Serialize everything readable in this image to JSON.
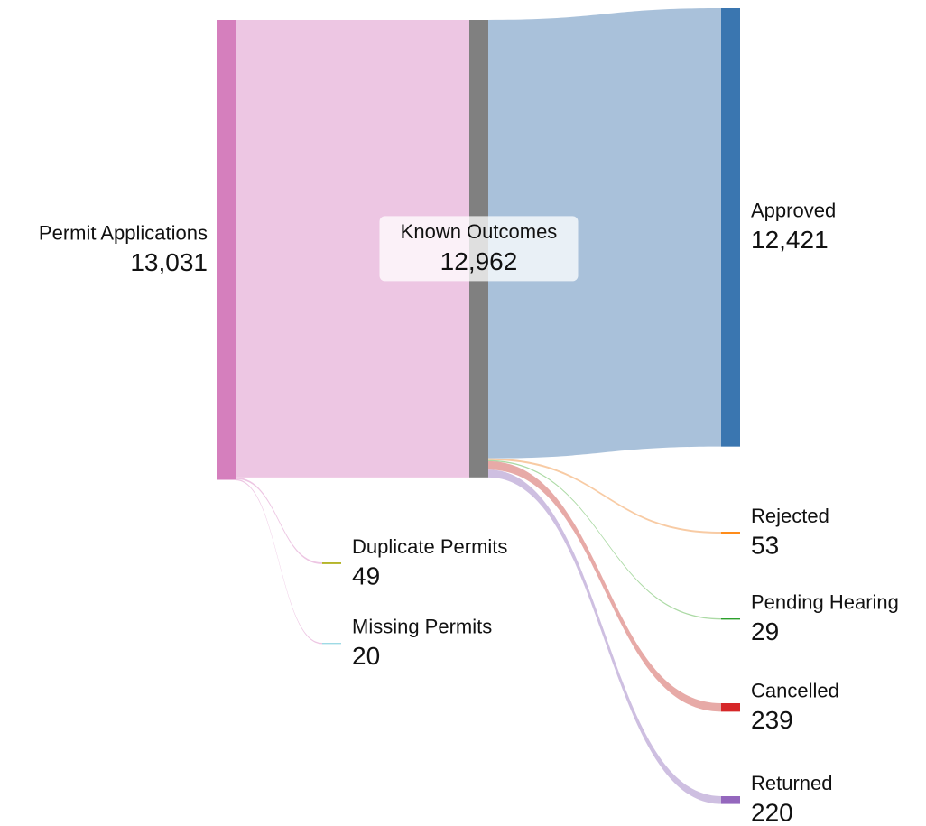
{
  "chart_data": {
    "type": "sankey",
    "nodes": [
      {
        "name": "Permit Applications",
        "value": 13031,
        "value_label": "13,031",
        "color": "#d57fbd"
      },
      {
        "name": "Known Outcomes",
        "value": 12962,
        "value_label": "12,962",
        "color": "#808080"
      },
      {
        "name": "Duplicate Permits",
        "value": 49,
        "value_label": "49",
        "color": "#b5b52a"
      },
      {
        "name": "Missing Permits",
        "value": 20,
        "value_label": "20",
        "color": "#9edae5"
      },
      {
        "name": "Approved",
        "value": 12421,
        "value_label": "12,421",
        "color": "#3a76b0"
      },
      {
        "name": "Rejected",
        "value": 53,
        "value_label": "53",
        "color": "#ff8c1a"
      },
      {
        "name": "Pending Hearing",
        "value": 29,
        "value_label": "29",
        "color": "#2ca02c"
      },
      {
        "name": "Cancelled",
        "value": 239,
        "value_label": "239",
        "color": "#d62728"
      },
      {
        "name": "Returned",
        "value": 220,
        "value_label": "220",
        "color": "#9467bd"
      }
    ],
    "links": [
      {
        "source": 0,
        "target": 1,
        "color": "#ecc3e1"
      },
      {
        "source": 0,
        "target": 2,
        "color": "#ecc3e1"
      },
      {
        "source": 0,
        "target": 3,
        "color": "#ecc3e1"
      },
      {
        "source": 1,
        "target": 4,
        "color": "#a4bed8"
      },
      {
        "source": 1,
        "target": 5,
        "color": "#f8c89f"
      },
      {
        "source": 1,
        "target": 6,
        "color": "#a8d8a0"
      },
      {
        "source": 1,
        "target": 7,
        "color": "#e6a5a2"
      },
      {
        "source": 1,
        "target": 8,
        "color": "#cbbcdf"
      }
    ]
  }
}
